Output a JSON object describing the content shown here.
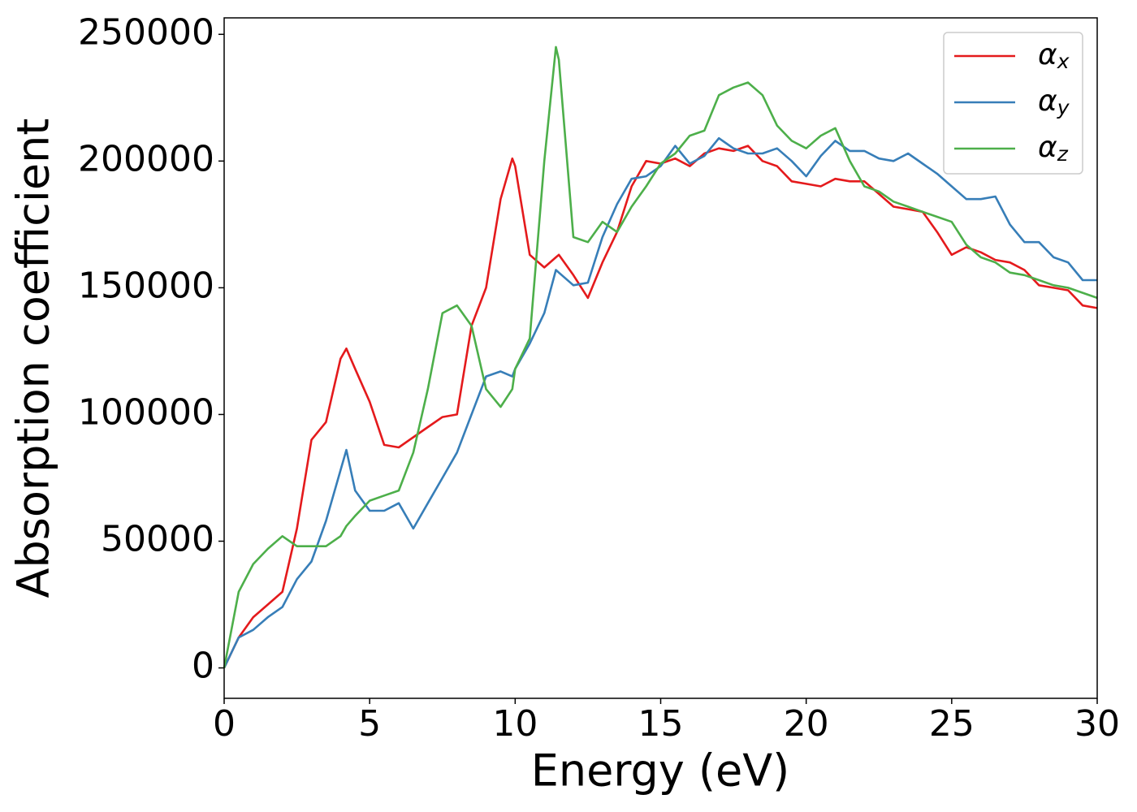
{
  "chart_data": {
    "type": "line",
    "xlabel": "Energy (eV)",
    "ylabel": "Absorption coefficient",
    "x": [
      0,
      0.5,
      1,
      1.5,
      2,
      2.5,
      3,
      3.5,
      4,
      4.2,
      4.5,
      5,
      5.5,
      6,
      6.5,
      7,
      7.5,
      8,
      8.5,
      9,
      9.5,
      9.9,
      10,
      10.5,
      11,
      11.4,
      11.5,
      12,
      12.5,
      13,
      13.5,
      14,
      14.5,
      15,
      15.5,
      16,
      16.5,
      17,
      17.5,
      18,
      18.5,
      19,
      19.5,
      20,
      20.5,
      21,
      21.5,
      22,
      22.5,
      23,
      23.5,
      24,
      24.5,
      25,
      25.5,
      26,
      26.5,
      27,
      27.5,
      28,
      28.5,
      29,
      29.5,
      30
    ],
    "series": [
      {
        "name": "αx",
        "color": "#e41a1c",
        "values": [
          0,
          12000,
          20000,
          25000,
          30000,
          55000,
          90000,
          97000,
          122000,
          126000,
          118000,
          105000,
          88000,
          87000,
          91000,
          95000,
          99000,
          100000,
          135000,
          150000,
          185000,
          201000,
          198000,
          163000,
          158000,
          162000,
          163000,
          155000,
          146000,
          160000,
          172000,
          190000,
          200000,
          199000,
          201000,
          198000,
          203000,
          205000,
          204000,
          206000,
          200000,
          198000,
          192000,
          191000,
          190000,
          193000,
          192000,
          192000,
          187000,
          182000,
          181000,
          180000,
          172000,
          163000,
          166000,
          164000,
          161000,
          160000,
          157000,
          151000,
          150000,
          149000,
          143000,
          142000
        ]
      },
      {
        "name": "αy",
        "color": "#377eb8",
        "values": [
          0,
          12000,
          15000,
          20000,
          24000,
          35000,
          42000,
          58000,
          78000,
          86000,
          70000,
          62000,
          62000,
          65000,
          55000,
          65000,
          75000,
          85000,
          100000,
          115000,
          117000,
          115000,
          118000,
          128000,
          140000,
          157000,
          156000,
          151000,
          152000,
          170000,
          183000,
          193000,
          194000,
          198000,
          206000,
          199000,
          202000,
          209000,
          205000,
          203000,
          203000,
          205000,
          200000,
          194000,
          202000,
          208000,
          204000,
          204000,
          201000,
          200000,
          203000,
          199000,
          195000,
          190000,
          185000,
          185000,
          186000,
          175000,
          168000,
          168000,
          162000,
          160000,
          153000,
          153000
        ]
      },
      {
        "name": "αz",
        "color": "#4daf4a",
        "values": [
          0,
          30000,
          41000,
          47000,
          52000,
          48000,
          48000,
          48000,
          52000,
          56000,
          60000,
          66000,
          68000,
          70000,
          85000,
          110000,
          140000,
          143000,
          135000,
          110000,
          103000,
          110000,
          118000,
          130000,
          200000,
          245000,
          240000,
          170000,
          168000,
          176000,
          172000,
          182000,
          190000,
          199000,
          203000,
          210000,
          212000,
          226000,
          229000,
          231000,
          226000,
          214000,
          208000,
          205000,
          210000,
          213000,
          200000,
          190000,
          188000,
          184000,
          182000,
          180000,
          178000,
          176000,
          167000,
          162000,
          160000,
          156000,
          155000,
          153000,
          151000,
          150000,
          148000,
          146000
        ]
      }
    ],
    "xlim": [
      0,
      30
    ],
    "xticks": [
      0,
      5,
      10,
      15,
      20,
      25,
      30
    ],
    "ylim": [
      -12000,
      256500
    ],
    "yticks": [
      0,
      50000,
      100000,
      150000,
      200000,
      250000
    ],
    "legend": "upper right"
  }
}
